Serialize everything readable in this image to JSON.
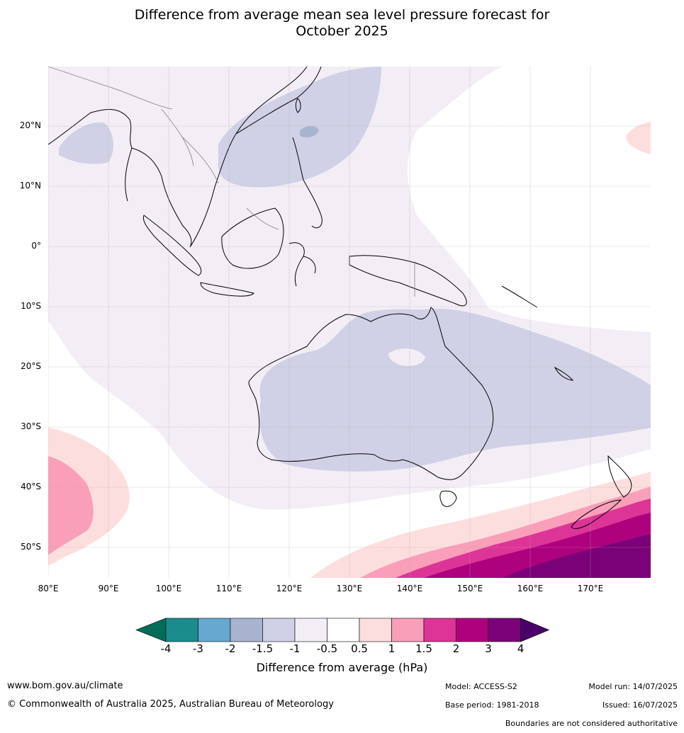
{
  "title_line1": "Difference from average mean sea level pressure forecast for",
  "title_line2": "October 2025",
  "map": {
    "lat_labels": [
      "20°N",
      "10°N",
      "0°",
      "10°S",
      "20°S",
      "30°S",
      "40°S",
      "50°S"
    ],
    "lon_labels": [
      "80°E",
      "90°E",
      "100°E",
      "110°E",
      "120°E",
      "130°E",
      "140°E",
      "150°E",
      "160°E",
      "170°E"
    ],
    "colors": {
      "neg05": "#f3edf5",
      "neg1": "#d0d1e6",
      "neg15": "#a8b4cf",
      "pos05": "#fddede",
      "pos1": "#f99fb9",
      "pos15": "#dd3497",
      "pos2": "#ae017e",
      "pos3": "#7a0177",
      "coast": "#000000",
      "border": "#808080",
      "grid": "#b0b0b0"
    }
  },
  "colorbar": {
    "ticks": [
      "-4",
      "-3",
      "-2",
      "-1.5",
      "-1",
      "-0.5",
      "0.5",
      "1",
      "1.5",
      "2",
      "3",
      "4"
    ],
    "colors": [
      "#1a8c8c",
      "#66a8d0",
      "#a8b4cf",
      "#d0d1e6",
      "#f3edf5",
      "#ffffff",
      "#fddede",
      "#f99fb9",
      "#dd3497",
      "#ae017e",
      "#7a0177"
    ],
    "under_color": "#016c59",
    "over_color": "#49006a",
    "label": "Difference from average (hPa)"
  },
  "footer": {
    "website": "www.bom.gov.au/climate",
    "copyright": "© Commonwealth of Australia 2025, Australian Bureau of Meteorology",
    "model": "Model: ACCESS-S2",
    "model_run": "Model run: 14/07/2025",
    "base_period": "Base period: 1981-2018",
    "issued": "Issued: 16/07/2025",
    "disclaimer": "Boundaries are not considered authoritative"
  }
}
